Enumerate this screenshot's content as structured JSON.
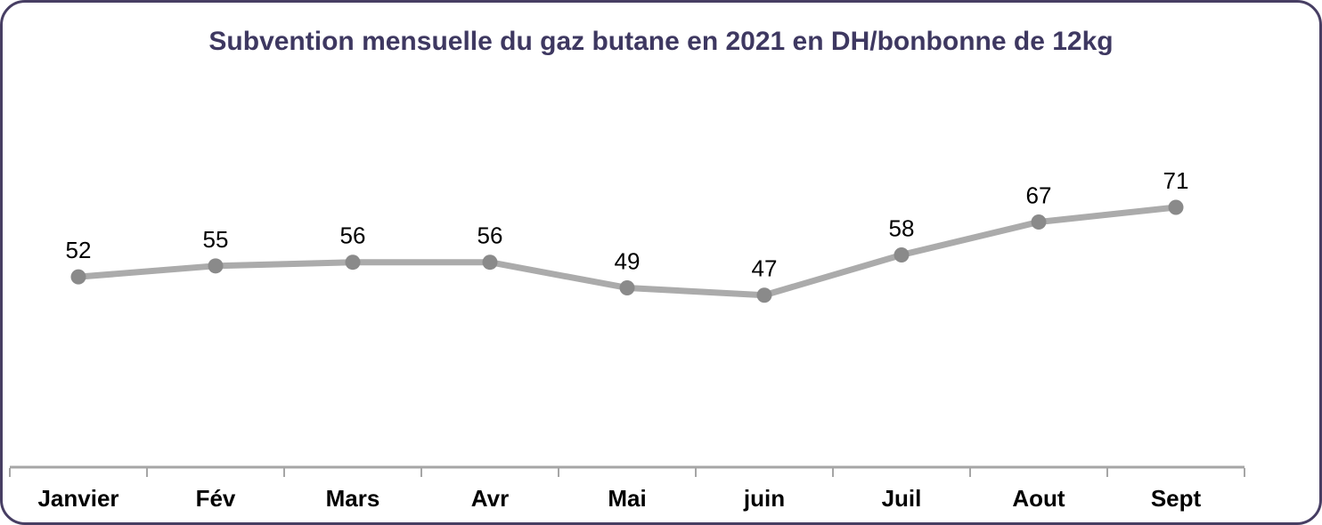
{
  "window": {
    "background": "#ffffff",
    "border_color": "#473e63"
  },
  "chart_data": {
    "type": "line",
    "title": "Subvention mensuelle du gaz butane en 2021 en DH/bonbonne de 12kg",
    "categories": [
      "Janvier",
      "Fév",
      "Mars",
      "Avr",
      "Mai",
      "juin",
      "Juil",
      "Aout",
      "Sept"
    ],
    "values": [
      52,
      55,
      56,
      56,
      49,
      47,
      58,
      67,
      71
    ],
    "series": [
      {
        "name": "Subvention mensuelle du gaz butane en 2021 en DH/bonbonne de 12kg",
        "values": [
          52,
          55,
          56,
          56,
          49,
          47,
          58,
          67,
          71
        ]
      }
    ],
    "xlabel": "",
    "ylabel": "",
    "ylim": [
      0,
      80
    ],
    "grid": false,
    "legend_position": "none",
    "data_labels": "above-points",
    "colors": {
      "title": "#3e3861",
      "line": "#ababab",
      "marker": "#8a8a8a",
      "axis": "#a6a6a6",
      "data_label": "#000000",
      "category_label": "#000000"
    }
  }
}
